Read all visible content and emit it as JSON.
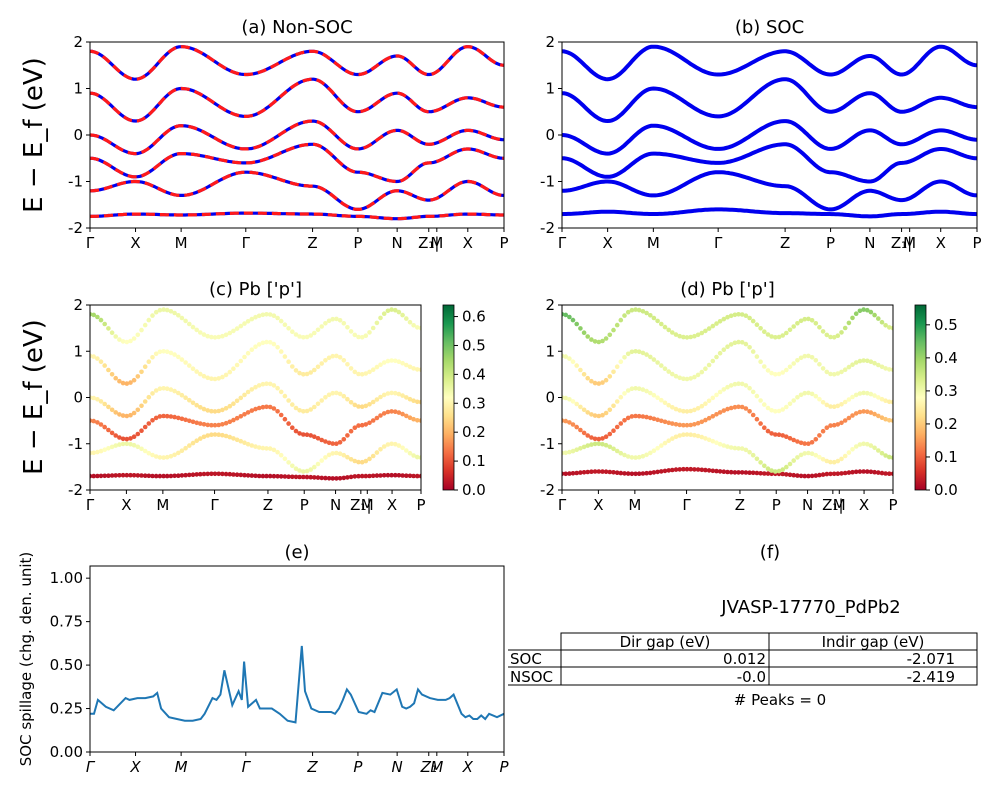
{
  "figure": {
    "ylabel": "E − E_f (eV)"
  },
  "panels": {
    "a": {
      "title": "(a) Non-SOC"
    },
    "b": {
      "title": "(b) SOC"
    },
    "c": {
      "title": "(c)  Pb ['p']"
    },
    "d": {
      "title": "(d) Pb ['p']"
    },
    "e": {
      "title": "(e)",
      "ylabel": "SOC spillage (chg. den. unit)"
    },
    "f": {
      "title": "(f)",
      "material": "JVASP-17770_PdPb2",
      "table": {
        "col_headers": [
          "Dir gap (eV)",
          "Indir gap (eV)"
        ],
        "rows": [
          {
            "label": "SOC",
            "dir": "0.012",
            "indir": "-2.071"
          },
          {
            "label": "NSOC",
            "dir": "-0.0",
            "indir": "-2.419"
          }
        ]
      },
      "peaks": "# Peaks = 0"
    }
  },
  "kpath": {
    "labels": [
      "Γ",
      "X",
      "M",
      "Γ",
      "Z",
      "P",
      "N",
      "Z₁|",
      "M",
      "X",
      "P"
    ],
    "positions": [
      0,
      0.576,
      1.153,
      1.971,
      2.816,
      3.39,
      3.886,
      4.286,
      4.388,
      4.78,
      5.238
    ]
  },
  "colors": {
    "nonsoc_line": "#ff1a1a",
    "soc_line": "#0000ee",
    "spillage_line": "#1f77b4",
    "colormap": [
      "#a50026",
      "#d73027",
      "#f46d43",
      "#fdae61",
      "#fee08b",
      "#ffffbf",
      "#d9ef8b",
      "#a6d96a",
      "#66bd63",
      "#1a9850",
      "#006837"
    ]
  },
  "chart_data": [
    {
      "type": "line",
      "panel": "a",
      "title": "(a) Non-SOC",
      "ylabel": "E − E_f (eV)",
      "ylim": [
        -2,
        2
      ],
      "yticks": [
        -2,
        -1,
        0,
        1,
        2
      ],
      "x": [
        0,
        0.576,
        1.153,
        1.971,
        2.816,
        3.39,
        3.886,
        4.286,
        4.78,
        5.238
      ],
      "series": [
        {
          "values": [
            -1.75,
            -1.7,
            -1.72,
            -1.68,
            -1.7,
            -1.75,
            -1.8,
            -1.75,
            -1.7,
            -1.72
          ]
        },
        {
          "values": [
            -1.2,
            -1.0,
            -1.3,
            -0.8,
            -1.1,
            -1.6,
            -1.2,
            -1.4,
            -1.0,
            -1.3
          ]
        },
        {
          "values": [
            -0.5,
            -0.9,
            -0.4,
            -0.6,
            -0.2,
            -0.8,
            -1.0,
            -0.6,
            -0.3,
            -0.5
          ]
        },
        {
          "values": [
            0.0,
            -0.4,
            0.2,
            -0.3,
            0.3,
            -0.3,
            0.1,
            -0.2,
            0.1,
            -0.1
          ]
        },
        {
          "values": [
            0.9,
            0.3,
            1.0,
            0.4,
            1.2,
            0.5,
            0.9,
            0.5,
            0.8,
            0.6
          ]
        },
        {
          "values": [
            1.8,
            1.2,
            1.9,
            1.3,
            1.8,
            1.3,
            1.7,
            1.3,
            1.9,
            1.5
          ]
        }
      ]
    },
    {
      "type": "line",
      "panel": "b",
      "title": "(b) SOC",
      "ylim": [
        -2,
        2
      ],
      "yticks": [
        -2,
        -1,
        0,
        1,
        2
      ],
      "x": [
        0,
        0.576,
        1.153,
        1.971,
        2.816,
        3.39,
        3.886,
        4.286,
        4.78,
        5.238
      ],
      "series": [
        {
          "values": [
            -1.7,
            -1.65,
            -1.7,
            -1.6,
            -1.68,
            -1.7,
            -1.75,
            -1.7,
            -1.65,
            -1.7
          ]
        },
        {
          "values": [
            -1.2,
            -1.0,
            -1.3,
            -0.8,
            -1.1,
            -1.6,
            -1.2,
            -1.4,
            -1.0,
            -1.3
          ]
        },
        {
          "values": [
            -0.5,
            -0.9,
            -0.4,
            -0.6,
            -0.2,
            -0.8,
            -1.0,
            -0.6,
            -0.3,
            -0.5
          ]
        },
        {
          "values": [
            0.0,
            -0.4,
            0.2,
            -0.3,
            0.3,
            -0.3,
            0.1,
            -0.2,
            0.1,
            -0.1
          ]
        },
        {
          "values": [
            0.9,
            0.3,
            1.0,
            0.4,
            1.2,
            0.5,
            0.9,
            0.5,
            0.8,
            0.6
          ]
        },
        {
          "values": [
            1.8,
            1.2,
            1.9,
            1.3,
            1.8,
            1.3,
            1.7,
            1.3,
            1.9,
            1.5
          ]
        }
      ]
    },
    {
      "type": "scatter",
      "panel": "c",
      "title": "(c)  Pb ['p']",
      "ylim": [
        -2,
        2
      ],
      "colorbar_ticks": [
        0.0,
        0.1,
        0.2,
        0.3,
        0.4,
        0.5,
        0.6
      ],
      "colorbar_max": 0.64,
      "x": [
        0,
        0.576,
        1.153,
        1.971,
        2.816,
        3.39,
        3.886,
        4.286,
        4.78,
        5.238
      ],
      "series": [
        {
          "values": [
            -1.7,
            -1.68,
            -1.7,
            -1.65,
            -1.7,
            -1.72,
            -1.75,
            -1.7,
            -1.68,
            -1.7
          ],
          "weights": [
            0.02,
            0.03,
            0.02,
            0.03,
            0.02,
            0.03,
            0.02,
            0.03,
            0.02,
            0.03
          ]
        },
        {
          "values": [
            -1.2,
            -1.0,
            -1.3,
            -0.8,
            -1.1,
            -1.6,
            -1.2,
            -1.4,
            -1.0,
            -1.3
          ],
          "weights": [
            0.3,
            0.35,
            0.3,
            0.25,
            0.3,
            0.35,
            0.3,
            0.25,
            0.3,
            0.35
          ]
        },
        {
          "values": [
            -0.5,
            -0.9,
            -0.4,
            -0.6,
            -0.2,
            -0.8,
            -1.0,
            -0.6,
            -0.3,
            -0.5
          ],
          "weights": [
            0.15,
            0.1,
            0.12,
            0.15,
            0.14,
            0.1,
            0.12,
            0.13,
            0.15,
            0.2
          ]
        },
        {
          "values": [
            0.0,
            -0.4,
            0.2,
            -0.3,
            0.3,
            -0.3,
            0.1,
            -0.2,
            0.1,
            -0.1
          ],
          "weights": [
            0.3,
            0.2,
            0.3,
            0.25,
            0.3,
            0.28,
            0.3,
            0.25,
            0.3,
            0.25
          ]
        },
        {
          "values": [
            0.9,
            0.3,
            1.0,
            0.4,
            1.2,
            0.5,
            0.9,
            0.5,
            0.8,
            0.6
          ],
          "weights": [
            0.3,
            0.2,
            0.32,
            0.3,
            0.32,
            0.28,
            0.3,
            0.3,
            0.32,
            0.3
          ]
        },
        {
          "values": [
            1.8,
            1.2,
            1.9,
            1.3,
            1.8,
            1.3,
            1.7,
            1.3,
            1.9,
            1.5
          ],
          "weights": [
            0.45,
            0.32,
            0.35,
            0.33,
            0.34,
            0.33,
            0.34,
            0.33,
            0.38,
            0.33
          ]
        }
      ]
    },
    {
      "type": "scatter",
      "panel": "d",
      "title": "(d) Pb ['p']",
      "ylim": [
        -2,
        2
      ],
      "colorbar_ticks": [
        0.0,
        0.1,
        0.2,
        0.3,
        0.4,
        0.5
      ],
      "colorbar_max": 0.56,
      "x": [
        0,
        0.576,
        1.153,
        1.971,
        2.816,
        3.39,
        3.886,
        4.286,
        4.78,
        5.238
      ],
      "series": [
        {
          "values": [
            -1.65,
            -1.6,
            -1.65,
            -1.55,
            -1.62,
            -1.65,
            -1.7,
            -1.65,
            -1.6,
            -1.65
          ],
          "weights": [
            0.02,
            0.03,
            0.02,
            0.03,
            0.02,
            0.03,
            0.02,
            0.03,
            0.02,
            0.03
          ]
        },
        {
          "values": [
            -1.2,
            -1.0,
            -1.3,
            -0.8,
            -1.1,
            -1.6,
            -1.2,
            -1.4,
            -1.0,
            -1.3
          ],
          "weights": [
            0.3,
            0.35,
            0.3,
            0.25,
            0.3,
            0.35,
            0.3,
            0.25,
            0.3,
            0.35
          ]
        },
        {
          "values": [
            -0.5,
            -0.9,
            -0.4,
            -0.6,
            -0.2,
            -0.8,
            -1.0,
            -0.6,
            -0.3,
            -0.5
          ],
          "weights": [
            0.15,
            0.1,
            0.12,
            0.15,
            0.14,
            0.1,
            0.12,
            0.13,
            0.15,
            0.2
          ]
        },
        {
          "values": [
            0.0,
            -0.4,
            0.2,
            -0.3,
            0.3,
            -0.3,
            0.1,
            -0.2,
            0.1,
            -0.1
          ],
          "weights": [
            0.3,
            0.2,
            0.3,
            0.25,
            0.3,
            0.28,
            0.3,
            0.25,
            0.3,
            0.25
          ]
        },
        {
          "values": [
            0.9,
            0.3,
            1.0,
            0.4,
            1.2,
            0.5,
            0.9,
            0.5,
            0.8,
            0.6
          ],
          "weights": [
            0.3,
            0.2,
            0.32,
            0.3,
            0.32,
            0.28,
            0.3,
            0.3,
            0.32,
            0.3
          ]
        },
        {
          "values": [
            1.8,
            1.2,
            1.9,
            1.3,
            1.8,
            1.3,
            1.7,
            1.3,
            1.9,
            1.5
          ],
          "weights": [
            0.45,
            0.38,
            0.35,
            0.33,
            0.34,
            0.33,
            0.34,
            0.33,
            0.42,
            0.33
          ]
        }
      ]
    },
    {
      "type": "line",
      "panel": "e",
      "title": "(e)",
      "ylabel": "SOC spillage (chg. den. unit)",
      "ylim": [
        0,
        1.07
      ],
      "yticks": [
        "0.00",
        "0.25",
        "0.50",
        "0.75",
        "1.00"
      ],
      "xticklabels": [
        "Γ",
        "X",
        "M",
        "Γ",
        "Z",
        "P",
        "N",
        "Z₁",
        "M",
        "X",
        "P"
      ],
      "x": [
        0,
        0.05,
        0.1,
        0.2,
        0.3,
        0.45,
        0.5,
        0.6,
        0.7,
        0.8,
        0.85,
        0.9,
        1.0,
        1.1,
        1.2,
        1.3,
        1.4,
        1.45,
        1.55,
        1.6,
        1.65,
        1.7,
        1.8,
        1.88,
        1.92,
        1.95,
        2.0,
        2.1,
        2.15,
        2.2,
        2.3,
        2.4,
        2.5,
        2.6,
        2.68,
        2.72,
        2.8,
        2.9,
        3.0,
        3.05,
        3.1,
        3.15,
        3.2,
        3.25,
        3.3,
        3.4,
        3.5,
        3.55,
        3.6,
        3.7,
        3.8,
        3.88,
        3.95,
        4.0,
        4.05,
        4.1,
        4.15,
        4.2,
        4.3,
        4.4,
        4.5,
        4.55,
        4.6,
        4.7,
        4.75,
        4.8,
        4.85,
        4.9,
        4.95,
        5.0,
        5.05,
        5.15,
        5.238
      ],
      "values": [
        0.22,
        0.22,
        0.3,
        0.26,
        0.24,
        0.31,
        0.3,
        0.31,
        0.31,
        0.32,
        0.34,
        0.25,
        0.2,
        0.19,
        0.18,
        0.18,
        0.19,
        0.22,
        0.31,
        0.3,
        0.33,
        0.47,
        0.27,
        0.35,
        0.3,
        0.52,
        0.26,
        0.3,
        0.25,
        0.25,
        0.25,
        0.22,
        0.18,
        0.17,
        0.61,
        0.35,
        0.25,
        0.23,
        0.23,
        0.23,
        0.22,
        0.25,
        0.3,
        0.36,
        0.33,
        0.23,
        0.22,
        0.24,
        0.23,
        0.34,
        0.33,
        0.36,
        0.26,
        0.25,
        0.26,
        0.28,
        0.36,
        0.33,
        0.31,
        0.3,
        0.3,
        0.31,
        0.33,
        0.22,
        0.2,
        0.21,
        0.19,
        0.19,
        0.21,
        0.19,
        0.22,
        0.2,
        0.22
      ]
    }
  ]
}
